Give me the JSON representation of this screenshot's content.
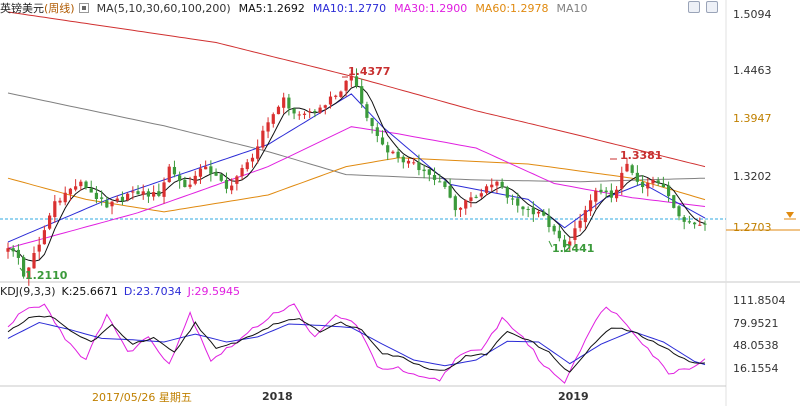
{
  "header": {
    "instrument": "英镑美元",
    "period": "(周线)",
    "ma_params": "MA(5,10,30,60,100,200)",
    "ma5": "MA5:1.2692",
    "ma10": "MA10:1.2770",
    "ma30": "MA30:1.2900",
    "ma60": "MA60:1.2978",
    "ma10b": "MA10"
  },
  "kdj": {
    "params": "KDJ(9,3,3)",
    "k": "K:25.6671",
    "d": "D:23.7034",
    "j": "J:29.5945"
  },
  "cursor_date": "2017/05/26 星期五",
  "colors": {
    "up": "#d93030",
    "down": "#3b9a3b",
    "ma5": "#111111",
    "ma10": "#2b2bd6",
    "ma30": "#e020e0",
    "ma60": "#e08a10",
    "ma100": "#808080",
    "ma200": "#d03030",
    "price_line": "#2fa8e0"
  },
  "chart_data": [
    {
      "type": "candlestick",
      "title": "英镑美元(周线)",
      "y_ticks": [
        "1.5094",
        "1.4463",
        "1.3947",
        "1.3202",
        "1.2703"
      ],
      "y_ticks_values": [
        1.5094,
        1.4463,
        1.3947,
        1.3202,
        1.2703
      ],
      "current_price": "1.2703",
      "x_ticks": [
        "2018",
        "2019"
      ],
      "annotations": [
        {
          "label": "1.4377",
          "value": 1.4377,
          "kind": "high"
        },
        {
          "label": "1.3381",
          "value": 1.3381,
          "kind": "high"
        },
        {
          "label": "1.2441",
          "value": 1.2441,
          "kind": "low"
        },
        {
          "label": "1.2110",
          "value": 1.211,
          "kind": "low"
        }
      ],
      "anchors": [
        [
          0,
          1.243
        ],
        [
          2,
          1.232
        ],
        [
          3,
          1.211
        ],
        [
          6,
          1.247
        ],
        [
          9,
          1.296
        ],
        [
          14,
          1.318
        ],
        [
          19,
          1.289
        ],
        [
          24,
          1.307
        ],
        [
          29,
          1.302
        ],
        [
          31,
          1.335
        ],
        [
          34,
          1.312
        ],
        [
          38,
          1.335
        ],
        [
          42,
          1.31
        ],
        [
          47,
          1.345
        ],
        [
          50,
          1.385
        ],
        [
          53,
          1.413
        ],
        [
          55,
          1.395
        ],
        [
          59,
          1.397
        ],
        [
          63,
          1.415
        ],
        [
          66,
          1.4377
        ],
        [
          69,
          1.39
        ],
        [
          72,
          1.36
        ],
        [
          75,
          1.345
        ],
        [
          80,
          1.33
        ],
        [
          84,
          1.312
        ],
        [
          86,
          1.286
        ],
        [
          88,
          1.297
        ],
        [
          91,
          1.305
        ],
        [
          94,
          1.318
        ],
        [
          96,
          1.3
        ],
        [
          99,
          1.287
        ],
        [
          102,
          1.284
        ],
        [
          105,
          1.262
        ],
        [
          107,
          1.2441
        ],
        [
          110,
          1.274
        ],
        [
          113,
          1.308
        ],
        [
          116,
          1.3
        ],
        [
          119,
          1.3381
        ],
        [
          122,
          1.312
        ],
        [
          124,
          1.32
        ],
        [
          126,
          1.312
        ],
        [
          129,
          1.279
        ],
        [
          132,
          1.27
        ],
        [
          134,
          1.2703
        ]
      ],
      "ma_series": [
        {
          "name": "MA10",
          "points": [
            [
              0,
              1.25
            ],
            [
              20,
              1.3
            ],
            [
              50,
              1.36
            ],
            [
              66,
              1.417
            ],
            [
              72,
              1.38
            ],
            [
              85,
              1.315
            ],
            [
              100,
              1.298
            ],
            [
              107,
              1.266
            ],
            [
              115,
              1.3
            ],
            [
              122,
              1.316
            ],
            [
              134,
              1.277
            ]
          ]
        },
        {
          "name": "MA30",
          "points": [
            [
              0,
              1.243
            ],
            [
              25,
              1.283
            ],
            [
              50,
              1.335
            ],
            [
              66,
              1.38
            ],
            [
              75,
              1.372
            ],
            [
              90,
              1.356
            ],
            [
              105,
              1.316
            ],
            [
              120,
              1.3
            ],
            [
              134,
              1.29
            ]
          ]
        },
        {
          "name": "MA60",
          "points": [
            [
              0,
              1.322
            ],
            [
              15,
              1.298
            ],
            [
              30,
              1.284
            ],
            [
              50,
              1.303
            ],
            [
              65,
              1.335
            ],
            [
              75,
              1.345
            ],
            [
              100,
              1.338
            ],
            [
              120,
              1.322
            ],
            [
              134,
              1.2978
            ]
          ]
        },
        {
          "name": "MA100",
          "points": [
            [
              0,
              1.418
            ],
            [
              30,
              1.381
            ],
            [
              50,
              1.352
            ],
            [
              65,
              1.326
            ],
            [
              90,
              1.32
            ],
            [
              110,
              1.318
            ],
            [
              134,
              1.322
            ]
          ]
        },
        {
          "name": "MA200",
          "points": [
            [
              0,
              1.5094
            ],
            [
              40,
              1.475
            ],
            [
              66,
              1.437
            ],
            [
              90,
              1.398
            ],
            [
              110,
              1.37
            ],
            [
              134,
              1.335
            ]
          ]
        }
      ]
    },
    {
      "type": "line",
      "title": "KDJ(9,3,3)",
      "y_ticks": [
        "111.8504",
        "79.9521",
        "48.0538",
        "16.1554"
      ],
      "y_ticks_values": [
        111.8504,
        79.9521,
        48.0538,
        16.1554
      ],
      "series": [
        {
          "name": "K",
          "values": [
            [
              0,
              70
            ],
            [
              4,
              88
            ],
            [
              8,
              92
            ],
            [
              12,
              70
            ],
            [
              16,
              55
            ],
            [
              20,
              78
            ],
            [
              24,
              52
            ],
            [
              28,
              60
            ],
            [
              32,
              40
            ],
            [
              36,
              82
            ],
            [
              40,
              45
            ],
            [
              44,
              55
            ],
            [
              48,
              68
            ],
            [
              52,
              82
            ],
            [
              56,
              88
            ],
            [
              60,
              70
            ],
            [
              64,
              82
            ],
            [
              68,
              72
            ],
            [
              72,
              40
            ],
            [
              76,
              33
            ],
            [
              80,
              20
            ],
            [
              84,
              15
            ],
            [
              88,
              35
            ],
            [
              92,
              38
            ],
            [
              96,
              70
            ],
            [
              100,
              58
            ],
            [
              104,
              40
            ],
            [
              108,
              12
            ],
            [
              112,
              48
            ],
            [
              116,
              75
            ],
            [
              120,
              70
            ],
            [
              124,
              55
            ],
            [
              128,
              40
            ],
            [
              132,
              25
            ],
            [
              134,
              25.6671
            ]
          ]
        },
        {
          "name": "D",
          "values": [
            [
              0,
              60
            ],
            [
              6,
              82
            ],
            [
              12,
              72
            ],
            [
              18,
              60
            ],
            [
              24,
              58
            ],
            [
              30,
              55
            ],
            [
              36,
              66
            ],
            [
              42,
              55
            ],
            [
              48,
              62
            ],
            [
              54,
              80
            ],
            [
              60,
              78
            ],
            [
              66,
              75
            ],
            [
              72,
              52
            ],
            [
              78,
              30
            ],
            [
              84,
              22
            ],
            [
              90,
              30
            ],
            [
              96,
              56
            ],
            [
              102,
              55
            ],
            [
              108,
              25
            ],
            [
              114,
              52
            ],
            [
              120,
              70
            ],
            [
              126,
              55
            ],
            [
              132,
              28
            ],
            [
              134,
              23.7034
            ]
          ]
        },
        {
          "name": "J",
          "values": [
            [
              0,
              75
            ],
            [
              3,
              100
            ],
            [
              7,
              108
            ],
            [
              11,
              60
            ],
            [
              15,
              30
            ],
            [
              19,
              95
            ],
            [
              23,
              40
            ],
            [
              27,
              62
            ],
            [
              31,
              25
            ],
            [
              35,
              95
            ],
            [
              39,
              30
            ],
            [
              43,
              50
            ],
            [
              47,
              72
            ],
            [
              51,
              95
            ],
            [
              55,
              106
            ],
            [
              59,
              60
            ],
            [
              63,
              92
            ],
            [
              67,
              80
            ],
            [
              71,
              20
            ],
            [
              75,
              18
            ],
            [
              79,
              5
            ],
            [
              83,
              2
            ],
            [
              87,
              40
            ],
            [
              91,
              42
            ],
            [
              95,
              88
            ],
            [
              99,
              62
            ],
            [
              103,
              22
            ],
            [
              107,
              0
            ],
            [
              111,
              60
            ],
            [
              115,
              106
            ],
            [
              119,
              80
            ],
            [
              123,
              46
            ],
            [
              127,
              12
            ],
            [
              131,
              20
            ],
            [
              134,
              29.5945
            ]
          ]
        }
      ]
    }
  ]
}
